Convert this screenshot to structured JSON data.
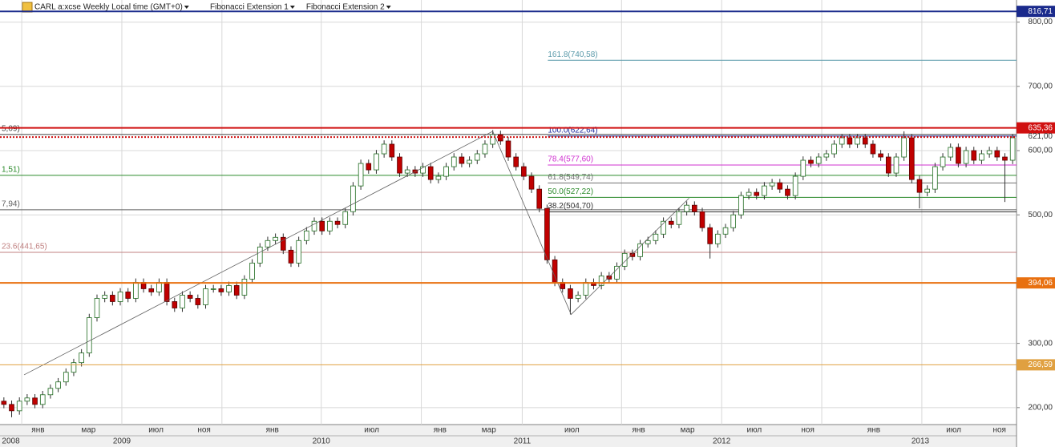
{
  "chart_data": {
    "type": "candlestick",
    "header": {
      "symbol": "CARL a:xcse Weekly Local time (GMT+0)",
      "tools": [
        "Fibonacci Extension 1",
        "Fibonacci Extension 2"
      ]
    },
    "up_color": "#ffffff",
    "up_edge": "#1f6b1f",
    "down_color": "#c00000",
    "down_edge": "#5a0000",
    "xlim": [
      0,
      131
    ],
    "ylim": [
      173.6,
      834.4
    ],
    "yticks": [
      {
        "value": 200,
        "label": "200,00"
      },
      {
        "value": 300,
        "label": "300,00"
      },
      {
        "value": 500,
        "label": "500,00"
      },
      {
        "value": 600,
        "label": "600,00"
      },
      {
        "value": 700,
        "label": "700,00"
      },
      {
        "value": 800,
        "label": "800,00"
      }
    ],
    "grid": true,
    "xticks": [
      {
        "value": 4.9,
        "label": "янв"
      },
      {
        "value": 11.4,
        "label": "мар"
      },
      {
        "value": 20.1,
        "label": "июл"
      },
      {
        "value": 26.3,
        "label": "ноя"
      },
      {
        "value": 35.1,
        "label": "янв"
      },
      {
        "value": 47.9,
        "label": "июл"
      },
      {
        "value": 56.7,
        "label": "янв"
      },
      {
        "value": 63.0,
        "label": "мар"
      },
      {
        "value": 73.7,
        "label": "июл"
      },
      {
        "value": 82.3,
        "label": "янв"
      },
      {
        "value": 88.6,
        "label": "мар"
      },
      {
        "value": 97.2,
        "label": "июл"
      },
      {
        "value": 104.1,
        "label": "ноя"
      },
      {
        "value": 112.6,
        "label": "янв"
      },
      {
        "value": 122.9,
        "label": "июл"
      },
      {
        "value": 128.8,
        "label": "ноя"
      }
    ],
    "year_ticks": [
      {
        "value": 1.4,
        "label": "2008"
      },
      {
        "value": 15.7,
        "label": "2009"
      },
      {
        "value": 41.4,
        "label": "2010"
      },
      {
        "value": 67.3,
        "label": "2011"
      },
      {
        "value": 93.0,
        "label": "2012"
      },
      {
        "value": 118.6,
        "label": "2013"
      }
    ],
    "xgrid": [
      2.8,
      15.7,
      28.6,
      41.4,
      54.3,
      67.3,
      80.1,
      93.0,
      105.9,
      118.8
    ],
    "open": [
      210,
      205,
      195,
      210,
      215,
      205,
      220,
      230,
      240,
      255,
      270,
      285,
      340,
      370,
      375,
      365,
      380,
      370,
      395,
      385,
      380,
      395,
      365,
      355,
      375,
      370,
      360,
      385,
      385,
      380,
      390,
      375,
      400,
      425,
      450,
      460,
      465,
      445,
      425,
      460,
      475,
      490,
      475,
      490,
      485,
      505,
      545,
      580,
      570,
      595,
      610,
      590,
      565,
      570,
      565,
      575,
      555,
      560,
      575,
      590,
      580,
      585,
      595,
      610,
      625,
      615,
      590,
      575,
      560,
      540,
      510,
      430,
      395,
      385,
      370,
      375,
      395,
      390,
      405,
      400,
      420,
      440,
      435,
      455,
      460,
      470,
      490,
      485,
      505,
      515,
      505,
      480,
      455,
      470,
      480,
      500,
      530,
      535,
      530,
      545,
      550,
      540,
      530,
      560,
      585,
      580,
      590,
      595,
      610,
      620,
      610,
      620,
      610,
      595,
      590,
      565,
      590,
      620,
      555,
      535,
      540,
      575,
      590,
      605,
      580,
      600,
      585,
      595,
      600,
      590,
      585
    ],
    "high": [
      216,
      211,
      216,
      221,
      221,
      226,
      236,
      246,
      261,
      276,
      291,
      346,
      376,
      381,
      381,
      386,
      386,
      401,
      401,
      391,
      401,
      401,
      371,
      381,
      381,
      376,
      391,
      391,
      391,
      396,
      396,
      406,
      431,
      456,
      466,
      471,
      471,
      451,
      466,
      481,
      496,
      496,
      496,
      496,
      511,
      551,
      586,
      586,
      601,
      616,
      616,
      596,
      576,
      576,
      581,
      581,
      566,
      581,
      596,
      596,
      591,
      601,
      616,
      632,
      631,
      621,
      596,
      581,
      566,
      546,
      516,
      436,
      401,
      391,
      381,
      401,
      401,
      411,
      411,
      426,
      446,
      446,
      461,
      466,
      476,
      496,
      496,
      511,
      521,
      521,
      511,
      486,
      476,
      486,
      506,
      536,
      541,
      541,
      551,
      556,
      556,
      546,
      566,
      591,
      591,
      596,
      601,
      616,
      626,
      626,
      626,
      626,
      616,
      601,
      596,
      596,
      630,
      626,
      561,
      546,
      581,
      596,
      611,
      611,
      606,
      606,
      601,
      606,
      606,
      596,
      626
    ],
    "low": [
      199,
      185,
      189,
      204,
      199,
      199,
      214,
      224,
      234,
      249,
      264,
      279,
      334,
      364,
      359,
      359,
      364,
      364,
      379,
      374,
      374,
      359,
      349,
      349,
      364,
      354,
      354,
      379,
      374,
      374,
      369,
      369,
      394,
      419,
      444,
      454,
      439,
      419,
      419,
      454,
      469,
      469,
      469,
      479,
      479,
      499,
      539,
      564,
      564,
      589,
      584,
      559,
      559,
      559,
      559,
      549,
      549,
      554,
      569,
      574,
      574,
      579,
      589,
      604,
      609,
      584,
      569,
      554,
      534,
      504,
      424,
      389,
      379,
      345,
      364,
      369,
      384,
      384,
      394,
      394,
      414,
      429,
      429,
      449,
      454,
      464,
      479,
      479,
      499,
      499,
      474,
      432,
      449,
      464,
      474,
      494,
      524,
      524,
      524,
      539,
      534,
      524,
      524,
      554,
      574,
      574,
      584,
      589,
      604,
      604,
      604,
      604,
      589,
      584,
      559,
      559,
      584,
      549,
      510,
      529,
      534,
      569,
      584,
      574,
      574,
      579,
      579,
      589,
      584,
      520,
      579
    ],
    "close": [
      205,
      195,
      210,
      215,
      205,
      220,
      230,
      240,
      255,
      270,
      285,
      340,
      370,
      375,
      365,
      380,
      370,
      395,
      385,
      380,
      395,
      365,
      355,
      375,
      370,
      360,
      385,
      385,
      380,
      390,
      375,
      400,
      425,
      450,
      460,
      465,
      445,
      425,
      460,
      475,
      490,
      475,
      490,
      485,
      505,
      545,
      580,
      570,
      595,
      610,
      590,
      565,
      570,
      565,
      575,
      555,
      560,
      575,
      590,
      580,
      585,
      595,
      610,
      625,
      615,
      590,
      575,
      560,
      540,
      510,
      430,
      395,
      385,
      370,
      375,
      395,
      390,
      405,
      400,
      420,
      440,
      435,
      455,
      460,
      470,
      490,
      485,
      505,
      515,
      505,
      480,
      455,
      470,
      480,
      500,
      530,
      535,
      530,
      545,
      550,
      540,
      530,
      560,
      585,
      580,
      590,
      595,
      610,
      620,
      610,
      620,
      610,
      595,
      590,
      565,
      590,
      620,
      555,
      535,
      540,
      575,
      590,
      605,
      580,
      600,
      585,
      595,
      600,
      590,
      585,
      620
    ],
    "fib_path": {
      "x": [
        3.1,
        63.5,
        73.6,
        88.8
      ],
      "y": [
        251,
        630,
        345,
        526
      ]
    },
    "axis_levels": [
      {
        "value": 816.71,
        "label": "816,71",
        "color": "#1a2a8c",
        "width": 2,
        "boxed": true
      },
      {
        "value": 635.36,
        "label": "635,36",
        "color": "#d01010",
        "width": 2,
        "boxed": true
      },
      {
        "value": 621.0,
        "label": "621,00",
        "color": "#d01010",
        "width": 2,
        "dotted": true,
        "boxed": false
      },
      {
        "value": 394.06,
        "label": "394,06",
        "color": "#e87010",
        "width": 2,
        "boxed": true
      },
      {
        "value": 266.59,
        "label": "266,59",
        "color": "#e0a040",
        "width": 1,
        "boxed": true
      }
    ],
    "fib_ext1": [
      {
        "value": 625.09,
        "label": "5,09)",
        "color": "#404040"
      },
      {
        "value": 561.51,
        "label": "1,51)",
        "color": "#2a8a2a"
      },
      {
        "value": 507.94,
        "label": "7,94)",
        "color": "#606060"
      },
      {
        "value": 441.65,
        "label": "23.6(441,65)",
        "color": "#c08080"
      }
    ],
    "fib_ext2": {
      "start": 70.6,
      "levels": [
        {
          "value": 740.58,
          "label": "161.8(740,58)",
          "color": "#5a9aaa"
        },
        {
          "value": 622.64,
          "label": "100.0(622,64)",
          "color": "#1a2a9c"
        },
        {
          "value": 577.6,
          "label": "78.4(577,60)",
          "color": "#d030d0"
        },
        {
          "value": 549.74,
          "label": "61.8(549,74)",
          "color": "#707070"
        },
        {
          "value": 527.22,
          "label": "50.0(527,22)",
          "color": "#2a8a2a"
        },
        {
          "value": 504.7,
          "label": "38.2(504,70)",
          "color": "#303030"
        }
      ]
    }
  }
}
